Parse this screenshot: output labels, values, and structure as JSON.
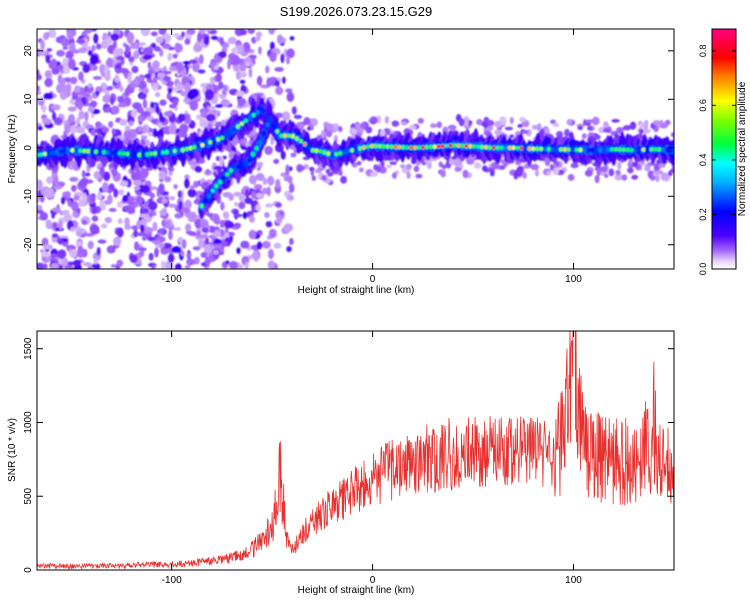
{
  "figure_title": "S199.2026.073.23.15.G29",
  "chart_data": [
    {
      "type": "heatmap",
      "title": "S199.2026.073.23.15.G29",
      "xlabel": "Height of straight line (km)",
      "ylabel": "Frequency (Hz)",
      "xlim": [
        -167,
        150
      ],
      "ylim": [
        -25,
        24.5
      ],
      "xticks": [
        -100,
        0,
        100
      ],
      "yticks": [
        -20,
        -10,
        0,
        10,
        20
      ],
      "grid": false,
      "colorbar": {
        "label": "Normalized spectral amplitude",
        "range": [
          0,
          0.88
        ],
        "ticks": [
          0.0,
          0.2,
          0.4,
          0.6,
          0.8
        ]
      },
      "ridge": {
        "x": [
          -167,
          -150,
          -130,
          -115,
          -105,
          -95,
          -85,
          -75,
          -65,
          -55,
          -46,
          -40,
          -35,
          -30,
          -25,
          -20,
          -15,
          -10,
          -5,
          0,
          10,
          20,
          30,
          40,
          50,
          60,
          70,
          80,
          90,
          100,
          110,
          120,
          130,
          140,
          150
        ],
        "freq": [
          -1.5,
          -0.5,
          -1,
          -1.5,
          -1,
          -0.5,
          0.5,
          2,
          5,
          8,
          2.5,
          2.5,
          1.2,
          -0.5,
          -0.8,
          -1.5,
          -1,
          -0.5,
          0,
          0.4,
          0.2,
          0,
          0.2,
          0.5,
          0.3,
          0,
          0,
          -0.2,
          -0.3,
          -0.4,
          -0.5,
          -0.3,
          -0.5,
          -0.3,
          -0.5
        ]
      },
      "ridge_branch": {
        "x": [
          -85,
          -78,
          -70,
          -62,
          -56,
          -51
        ],
        "freq": [
          -12,
          -8,
          -4.5,
          -3,
          1,
          6
        ]
      }
    },
    {
      "type": "line",
      "title": "",
      "xlabel": "Height of straight line (km)",
      "ylabel": "SNR (10 * v/v)",
      "xlim": [
        -167,
        150
      ],
      "ylim": [
        0,
        1620
      ],
      "xticks": [
        -100,
        0,
        100
      ],
      "yticks": [
        0,
        500,
        1000,
        1500
      ],
      "grid": false,
      "series": [
        {
          "name": "SNR",
          "color": "#e8312f",
          "x": [
            -167,
            -150,
            -130,
            -110,
            -90,
            -70,
            -60,
            -55,
            -50,
            -48,
            -46,
            -44,
            -42,
            -40,
            -38,
            -30,
            -20,
            -10,
            0,
            10,
            20,
            30,
            40,
            50,
            60,
            70,
            80,
            90,
            95,
            100,
            105,
            110,
            120,
            130,
            140,
            145,
            150
          ],
          "values": [
            30,
            25,
            30,
            35,
            45,
            80,
            140,
            200,
            280,
            420,
            650,
            380,
            180,
            130,
            180,
            330,
            430,
            520,
            610,
            680,
            720,
            760,
            790,
            800,
            810,
            820,
            800,
            790,
            900,
            1580,
            850,
            780,
            760,
            720,
            900,
            680,
            700
          ]
        }
      ]
    }
  ]
}
